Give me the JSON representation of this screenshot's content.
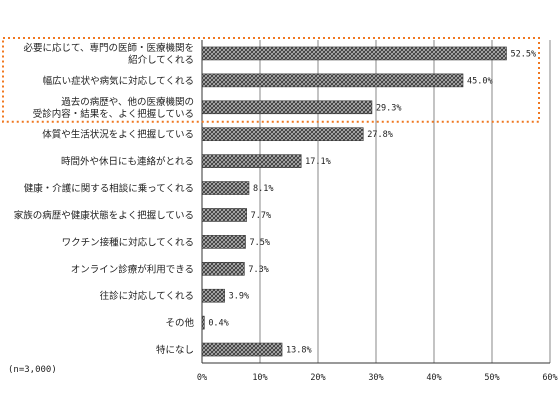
{
  "chart_data": {
    "type": "bar",
    "orientation": "horizontal",
    "categories": [
      [
        "必要に応じて、専門の医師・医療機関を",
        "紹介してくれる"
      ],
      [
        "幅広い症状や病気に対応してくれる"
      ],
      [
        "過去の病歴や、他の医療機関の",
        "受診内容・結果を、よく把握している"
      ],
      [
        "体質や生活状況をよく把握している"
      ],
      [
        "時間外や休日にも連絡がとれる"
      ],
      [
        "健康・介護に関する相談に乗ってくれる"
      ],
      [
        "家族の病歴や健康状態をよく把握している"
      ],
      [
        "ワクチン接種に対応してくれる"
      ],
      [
        "オンライン診療が利用できる"
      ],
      [
        "往診に対応してくれる"
      ],
      [
        "その他"
      ],
      [
        "特になし"
      ]
    ],
    "values": [
      52.5,
      45.0,
      29.3,
      27.8,
      17.1,
      8.1,
      7.7,
      7.5,
      7.3,
      3.9,
      0.4,
      13.8
    ],
    "value_labels": [
      "52.5%",
      "45.0%",
      "29.3%",
      "27.8%",
      "17.1%",
      "8.1%",
      "7.7%",
      "7.5%",
      "7.3%",
      "3.9%",
      "0.4%",
      "13.8%"
    ],
    "xlim": [
      0,
      60
    ],
    "xticks": [
      0,
      10,
      20,
      30,
      40,
      50,
      60
    ],
    "xtick_labels": [
      "0%",
      "10%",
      "20%",
      "30%",
      "40%",
      "50%",
      "60%"
    ],
    "highlight": {
      "from_index": 0,
      "to_index": 2,
      "style": "dotted",
      "color": "#f07820"
    },
    "note": "(n=3,000)",
    "bar_fill": "crosshatch",
    "bar_color": "#888888",
    "grid": true
  }
}
